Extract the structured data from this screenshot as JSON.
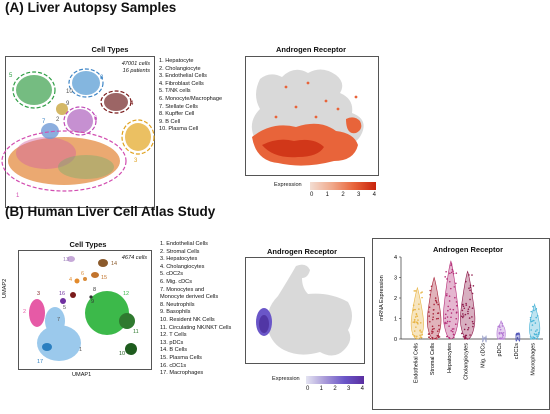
{
  "section_a": {
    "label": "(A)",
    "title": "Liver Autopsy Samples",
    "cell_types_title": "Cell Types",
    "meta_cells": "47001 cells",
    "meta_patients": "16 patients",
    "legend": [
      "1. Hepatocyte",
      "2. Cholangiocyte",
      "3. Endothelial Cells",
      "4. Fibroblast Cells",
      "5. T/NK cells",
      "6. Monocyte/Macrophage",
      "7. Stellate Cells",
      "8. Kupffer Cell",
      "9. B Cell",
      "10. Plasma Cell"
    ],
    "cluster_labels": [
      "1",
      "2",
      "3",
      "4",
      "5",
      "6",
      "7",
      "8",
      "9",
      "10"
    ],
    "ar_title": "Androgen Receptor",
    "expression_label": "Expression",
    "colorbar_ticks": [
      "0",
      "1",
      "2",
      "3",
      "4"
    ],
    "colors": {
      "low": "#f3ddd2",
      "high": "#c8230c"
    }
  },
  "section_b": {
    "label": "(B)",
    "title": "Human Liver Cell Atlas Study",
    "cell_types_title": "Cell Types",
    "meta_cells": "4674 cells",
    "umap2": "UMAP2",
    "umap1": "UMAP1",
    "legend": [
      "1. Endothelial Cells",
      "2. Stromal Cells",
      "3. Hepatocytes",
      "4. Cholangiocytes",
      "5. cDC2s",
      "6. Mig. cDCs",
      "7. Monocytes and",
      "Monocyte derived Cells",
      "8. Neutrophils",
      "9. Basophils",
      "10. Resident NK Cells",
      "11. Circulating NK/NKT Cells",
      "12. T Cells",
      "13. pDCs",
      "14. B Cells",
      "15. Plasma Cells",
      "16. cDC1s",
      "17. Macrophages"
    ],
    "cluster_labels": [
      "1",
      "2",
      "3",
      "4",
      "5",
      "6",
      "7",
      "8",
      "9",
      "10",
      "11",
      "12",
      "13",
      "14",
      "15",
      "16",
      "17"
    ],
    "ar_title": "Androgen Receptor",
    "expression_label": "Expression",
    "colorbar_ticks": [
      "0",
      "1",
      "2",
      "3",
      "4"
    ],
    "colors": {
      "low": "#e4e4f2",
      "high": "#5a2ea0"
    },
    "violin_title": "Androgen Receptor",
    "violin_ylabel": "mRNA Expression"
  },
  "chart_data": {
    "type": "violin",
    "title": "Androgen Receptor",
    "ylabel": "mRNA Expression",
    "ylim": [
      0,
      4
    ],
    "yticks": [
      "0",
      "1",
      "2",
      "3",
      "4"
    ],
    "categories": [
      "Endothelial Cells",
      "Stromal Cells",
      "Hepatocytes",
      "Cholangiocytes",
      "Mig. cDCs",
      "pDCs",
      "cDC1s",
      "Macrophages"
    ],
    "max_values": [
      2.5,
      3.0,
      3.8,
      3.3,
      0.1,
      0.9,
      0.3,
      1.7
    ],
    "colors": [
      "#e8b547",
      "#a8243a",
      "#b52d77",
      "#8e1a4a",
      "#9aa0c8",
      "#b479d4",
      "#4a4fb5",
      "#49b3d6"
    ]
  }
}
